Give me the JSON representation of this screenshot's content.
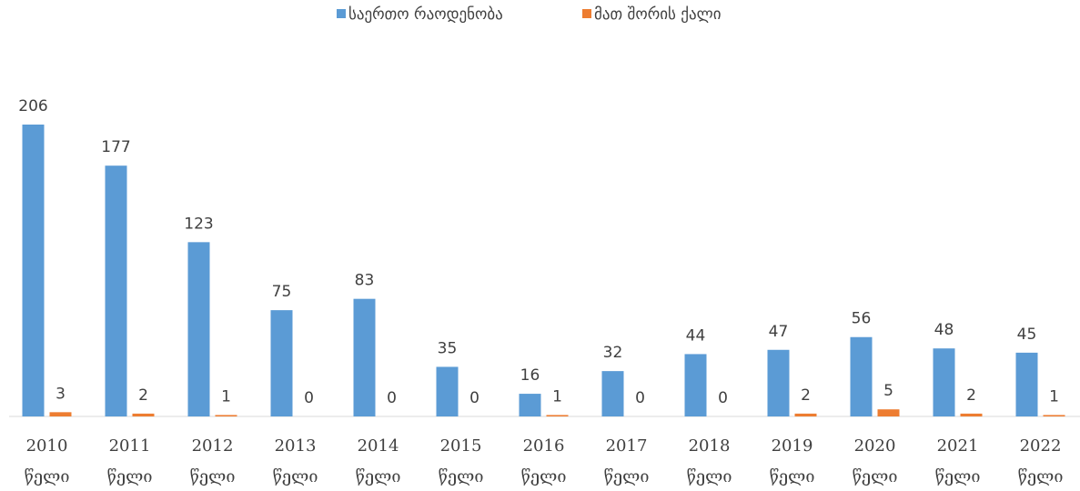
{
  "chart_data": {
    "type": "bar",
    "categories": [
      "2010 წელი",
      "2011 წელი",
      "2012 წელი",
      "2013 წელი",
      "2014 წელი",
      "2015 წელი",
      "2016 წელი",
      "2017 წელი",
      "2018 წელი",
      "2019 წელი",
      "2020 წელი",
      "2021 წელი",
      "2022 წელი"
    ],
    "series": [
      {
        "name": "საერთო რაოდენობა",
        "color": "#5b9bd5",
        "values": [
          206,
          177,
          123,
          75,
          83,
          35,
          16,
          32,
          44,
          47,
          56,
          48,
          45
        ]
      },
      {
        "name": "მათ შორის ქალი",
        "color": "#ed7d31",
        "values": [
          3,
          2,
          1,
          0,
          0,
          0,
          1,
          0,
          0,
          2,
          5,
          2,
          1
        ]
      }
    ],
    "legend": "top"
  }
}
